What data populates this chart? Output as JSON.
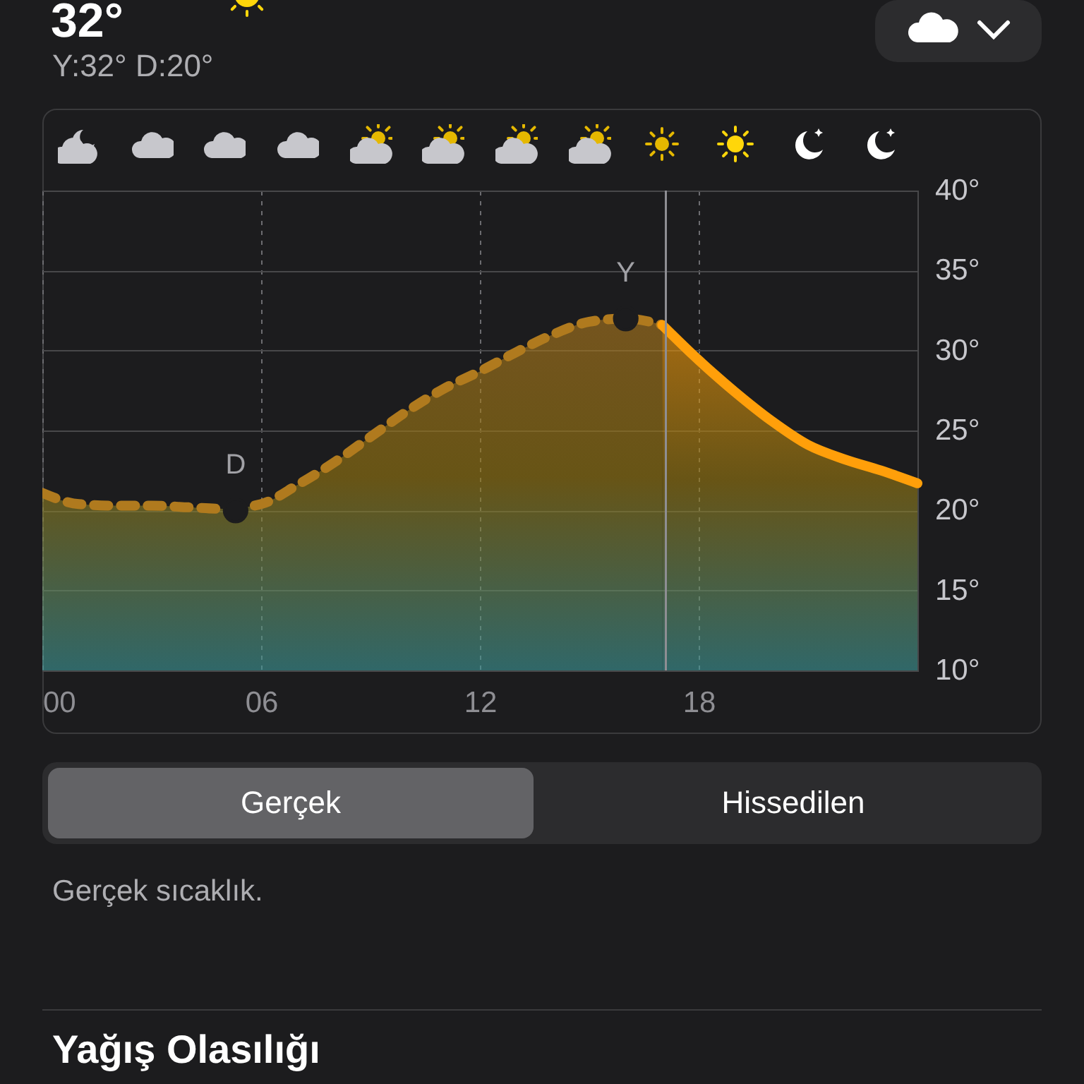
{
  "chart_data": {
    "type": "area",
    "title": "32°",
    "subtitle": "Y:32° D:20°",
    "series": [
      {
        "color": "#b07a1e",
        "line_style": "dashed",
        "x": [
          0,
          1,
          2,
          3,
          4,
          5,
          6,
          7,
          8,
          9,
          10,
          11,
          12,
          13,
          14,
          15,
          16,
          17
        ],
        "values": [
          21.1,
          20.4,
          20.3,
          20.3,
          20.2,
          20.1,
          20.4,
          21.6,
          23,
          24.6,
          26.2,
          27.6,
          28.7,
          29.9,
          31,
          31.8,
          32,
          31.6
        ]
      },
      {
        "color": "#ff9f0a",
        "line_style": "solid",
        "x": [
          17,
          18,
          19,
          20,
          21,
          22,
          23,
          24
        ],
        "values": [
          31.6,
          29.4,
          27.4,
          25.6,
          24.1,
          23.2,
          22.5,
          21.7
        ]
      }
    ],
    "xlim": [
      0,
      24
    ],
    "xticks": [
      {
        "value": 0,
        "label": "00"
      },
      {
        "value": 6,
        "label": "06"
      },
      {
        "value": 12,
        "label": "12"
      },
      {
        "value": 18,
        "label": "18"
      }
    ],
    "ylim": [
      10,
      40
    ],
    "yticks": [
      {
        "value": 10,
        "label": "10°"
      },
      {
        "value": 15,
        "label": "15°"
      },
      {
        "value": 20,
        "label": "20°"
      },
      {
        "value": 25,
        "label": "25°"
      },
      {
        "value": 30,
        "label": "30°"
      },
      {
        "value": 35,
        "label": "35°"
      },
      {
        "value": 40,
        "label": "40°"
      }
    ],
    "grid": true,
    "ref_lines": [
      {
        "axis": "x",
        "value": 17.1,
        "color": "#8e8e93"
      }
    ],
    "annotations": [
      "Gerçek",
      "Hissedilen",
      "Gerçek sıcaklık.",
      "Yağış Olasılığı",
      {
        "text": "Y",
        "x": 16,
        "y": 32
      },
      {
        "text": "D",
        "x": 5.3,
        "y": 20
      }
    ]
  }
}
